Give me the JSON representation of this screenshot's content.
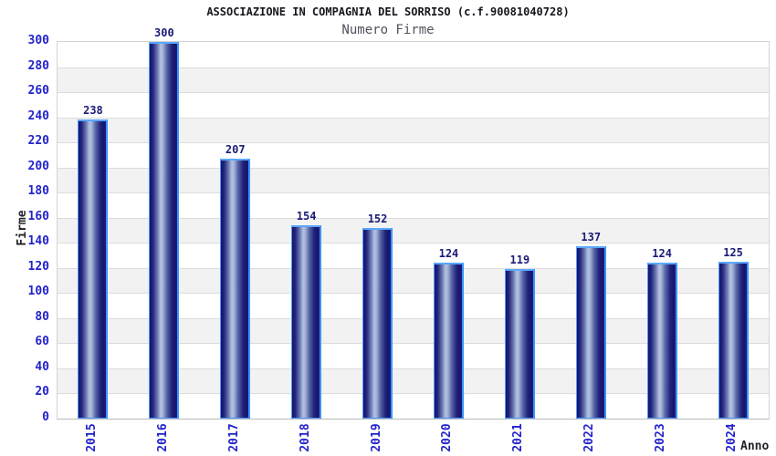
{
  "chart_data": {
    "type": "bar",
    "title": "ASSOCIAZIONE IN COMPAGNIA DEL SORRISO (c.f.90081040728)",
    "subtitle": "Numero Firme",
    "xlabel": "Anno",
    "ylabel": "Firme",
    "categories": [
      "2015",
      "2016",
      "2017",
      "2018",
      "2019",
      "2020",
      "2021",
      "2022",
      "2023",
      "2024"
    ],
    "values": [
      238,
      300,
      207,
      154,
      152,
      124,
      119,
      137,
      124,
      125
    ],
    "ylim": [
      0,
      300
    ],
    "ytick_step": 20,
    "yticks": [
      0,
      20,
      40,
      60,
      80,
      100,
      120,
      140,
      160,
      180,
      200,
      220,
      240,
      260,
      280,
      300
    ],
    "grid": "horizontal-bands-alternating",
    "legend": "none",
    "colors": {
      "bar_dark": "#16166e",
      "bar_highlight": "#b6c2e0",
      "bar_outline": "#4d9aff",
      "tick_label": "#2323cc",
      "value_label": "#1b1b78",
      "band_gray": "#f2f2f2",
      "band_white": "#ffffff",
      "gridline": "#dcdcdc",
      "plot_border": "#d4d4d4",
      "title_color": "#16161e",
      "subtitle_color": "#50505f",
      "axis_title_color": "#222228"
    }
  }
}
